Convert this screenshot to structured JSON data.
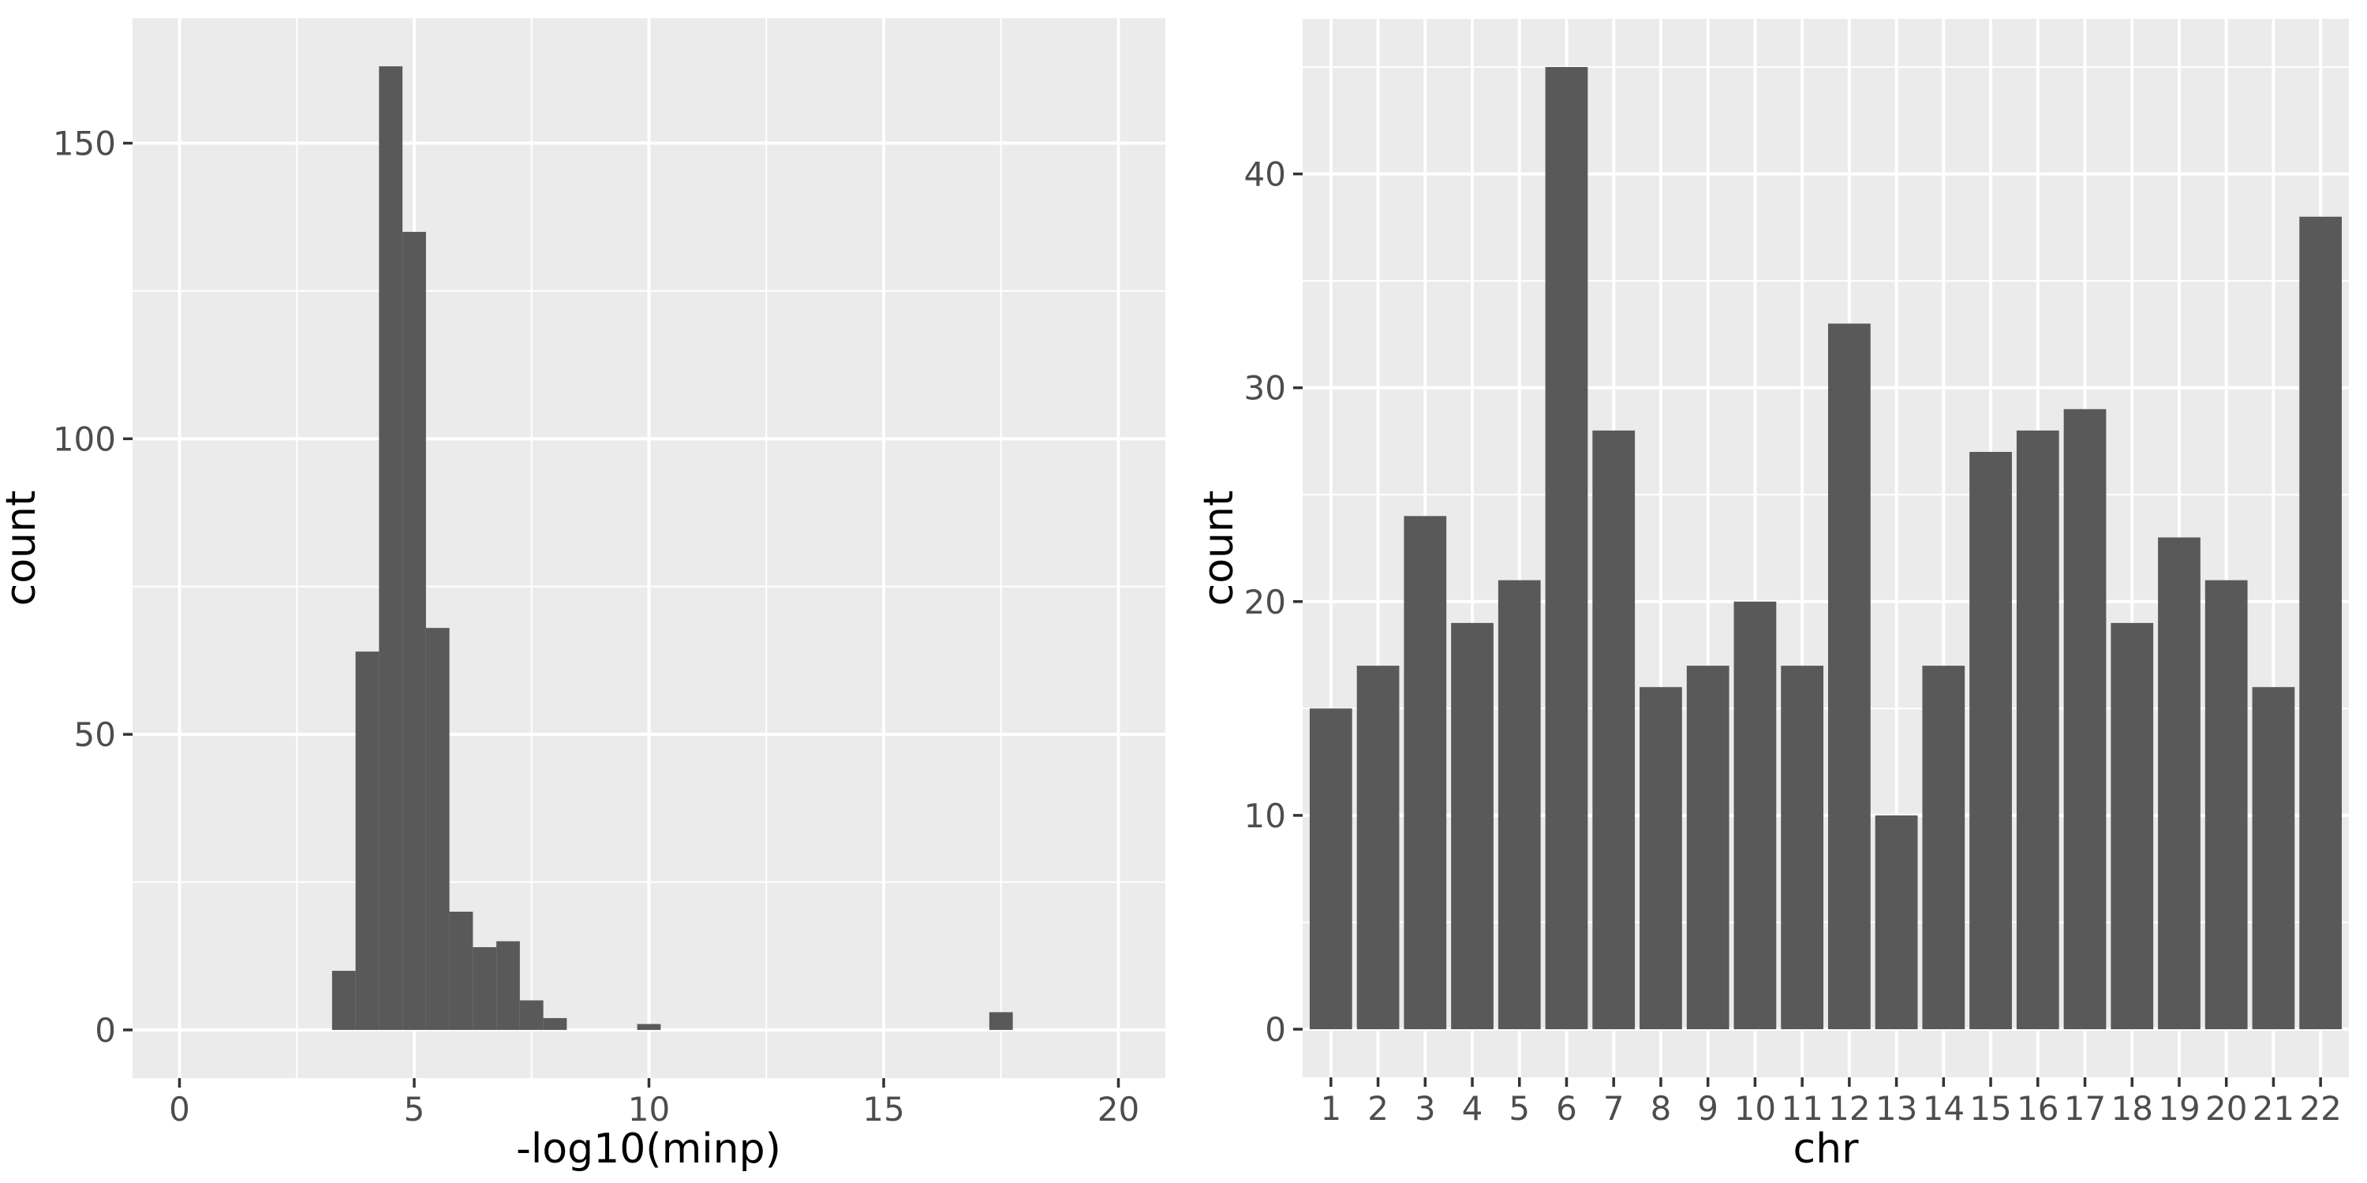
{
  "theme": {
    "page_background": "#FFFFFF",
    "panel_background": "#EBEBEB",
    "grid_major_color": "#FFFFFF",
    "grid_minor_color": "#FFFFFF",
    "bar_fill": "#595959",
    "tick_mark_color": "#333333",
    "tick_label_color": "#4D4D4D",
    "axis_title_color": "#000000"
  },
  "chart_data": [
    {
      "type": "bar",
      "subtype": "histogram",
      "title": "",
      "xlabel": "-log10(minp)",
      "ylabel": "count",
      "xlim": [
        -1,
        21
      ],
      "ylim": [
        -8.15,
        171.15
      ],
      "x_major_ticks": [
        0,
        5,
        10,
        15,
        20
      ],
      "x_minor_gridlines": [
        2.5,
        7.5,
        12.5,
        17.5
      ],
      "y_major_ticks": [
        0,
        50,
        100,
        150
      ],
      "y_minor_gridlines": [
        25,
        75,
        125
      ],
      "grid": true,
      "legend": false,
      "binwidth": 0.5,
      "bins": [
        {
          "x0": 3.25,
          "x1": 3.75,
          "count": 10
        },
        {
          "x0": 3.75,
          "x1": 4.25,
          "count": 64
        },
        {
          "x0": 4.25,
          "x1": 4.75,
          "count": 163
        },
        {
          "x0": 4.75,
          "x1": 5.25,
          "count": 135
        },
        {
          "x0": 5.25,
          "x1": 5.75,
          "count": 68
        },
        {
          "x0": 5.75,
          "x1": 6.25,
          "count": 20
        },
        {
          "x0": 6.25,
          "x1": 6.75,
          "count": 14
        },
        {
          "x0": 6.75,
          "x1": 7.25,
          "count": 15
        },
        {
          "x0": 7.25,
          "x1": 7.75,
          "count": 5
        },
        {
          "x0": 7.75,
          "x1": 8.25,
          "count": 2
        },
        {
          "x0": 9.75,
          "x1": 10.25,
          "count": 1
        },
        {
          "x0": 17.25,
          "x1": 17.75,
          "count": 3
        }
      ]
    },
    {
      "type": "bar",
      "subtype": "bar-discrete",
      "title": "",
      "xlabel": "chr",
      "ylabel": "count",
      "categories": [
        "1",
        "2",
        "3",
        "4",
        "5",
        "6",
        "7",
        "8",
        "9",
        "10",
        "11",
        "12",
        "13",
        "14",
        "15",
        "16",
        "17",
        "18",
        "19",
        "20",
        "21",
        "22"
      ],
      "values": [
        15,
        17,
        24,
        19,
        21,
        45,
        28,
        16,
        17,
        20,
        17,
        33,
        10,
        17,
        27,
        28,
        29,
        19,
        23,
        21,
        16,
        38
      ],
      "ylim": [
        -2.25,
        47.25
      ],
      "y_major_ticks": [
        0,
        10,
        20,
        30,
        40
      ],
      "y_minor_gridlines": [
        5,
        15,
        25,
        35,
        45
      ],
      "bar_width_fraction": 0.9,
      "grid": true,
      "legend": false
    }
  ]
}
